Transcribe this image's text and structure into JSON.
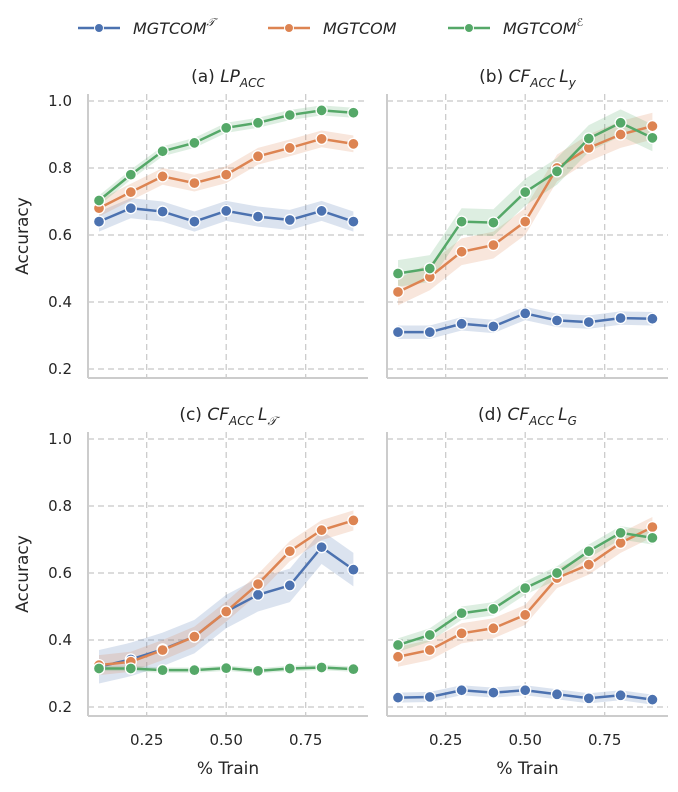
{
  "chart_data": [
    {
      "type": "line",
      "title": {
        "prefix": "(a)",
        "main": "LP",
        "sub": "ACC",
        "extra": "",
        "extra_sub": ""
      },
      "xlabel": "",
      "ylabel": "Accuracy",
      "x": [
        0.1,
        0.2,
        0.3,
        0.4,
        0.5,
        0.6,
        0.7,
        0.8,
        0.9
      ],
      "series": [
        {
          "name": "MGTCOM𝒯",
          "values": [
            0.64,
            0.68,
            0.67,
            0.64,
            0.672,
            0.655,
            0.645,
            0.672,
            0.64
          ],
          "ci": 0.03
        },
        {
          "name": "MGTCOM",
          "values": [
            0.68,
            0.728,
            0.775,
            0.755,
            0.78,
            0.835,
            0.86,
            0.887,
            0.872
          ],
          "ci": 0.025
        },
        {
          "name": "MGTCOMℰ",
          "values": [
            0.703,
            0.78,
            0.85,
            0.875,
            0.92,
            0.935,
            0.958,
            0.972,
            0.965
          ],
          "ci": 0.015
        }
      ]
    },
    {
      "type": "line",
      "title": {
        "prefix": "(b)",
        "main": "CF",
        "sub": "ACC",
        "extra": "L",
        "extra_sub": "y"
      },
      "xlabel": "",
      "ylabel": "",
      "x": [
        0.1,
        0.2,
        0.3,
        0.4,
        0.5,
        0.6,
        0.7,
        0.8,
        0.9
      ],
      "series": [
        {
          "name": "MGTCOM𝒯",
          "values": [
            0.31,
            0.31,
            0.335,
            0.327,
            0.366,
            0.345,
            0.34,
            0.352,
            0.35
          ],
          "ci": 0.02
        },
        {
          "name": "MGTCOM",
          "values": [
            0.43,
            0.475,
            0.55,
            0.57,
            0.64,
            0.8,
            0.86,
            0.9,
            0.925
          ],
          "ci": 0.04
        },
        {
          "name": "MGTCOMℰ",
          "values": [
            0.485,
            0.5,
            0.64,
            0.637,
            0.728,
            0.79,
            0.888,
            0.935,
            0.89
          ],
          "ci": 0.04
        }
      ]
    },
    {
      "type": "line",
      "title": {
        "prefix": "(c)",
        "main": "CF",
        "sub": "ACC",
        "extra": "L",
        "extra_sub": "𝒯"
      },
      "xlabel": "% Train",
      "ylabel": "Accuracy",
      "x": [
        0.1,
        0.2,
        0.3,
        0.4,
        0.5,
        0.6,
        0.7,
        0.8,
        0.9
      ],
      "series": [
        {
          "name": "MGTCOM𝒯",
          "values": [
            0.32,
            0.342,
            0.372,
            0.41,
            0.485,
            0.535,
            0.563,
            0.677,
            0.61
          ],
          "ci": 0.05
        },
        {
          "name": "MGTCOM",
          "values": [
            0.325,
            0.335,
            0.37,
            0.41,
            0.485,
            0.567,
            0.665,
            0.728,
            0.757
          ],
          "ci": 0.03
        },
        {
          "name": "MGTCOMℰ",
          "values": [
            0.315,
            0.315,
            0.31,
            0.31,
            0.316,
            0.308,
            0.315,
            0.318,
            0.313
          ],
          "ci": 0.008
        }
      ]
    },
    {
      "type": "line",
      "title": {
        "prefix": "(d)",
        "main": "CF",
        "sub": "ACC",
        "extra": "L",
        "extra_sub": "G"
      },
      "xlabel": "% Train",
      "ylabel": "",
      "x": [
        0.1,
        0.2,
        0.3,
        0.4,
        0.5,
        0.6,
        0.7,
        0.8,
        0.9
      ],
      "series": [
        {
          "name": "MGTCOM𝒯",
          "values": [
            0.228,
            0.23,
            0.25,
            0.243,
            0.25,
            0.238,
            0.226,
            0.235,
            0.222
          ],
          "ci": 0.015
        },
        {
          "name": "MGTCOM",
          "values": [
            0.35,
            0.37,
            0.42,
            0.435,
            0.475,
            0.585,
            0.625,
            0.69,
            0.737
          ],
          "ci": 0.03
        },
        {
          "name": "MGTCOMℰ",
          "values": [
            0.385,
            0.415,
            0.48,
            0.493,
            0.555,
            0.6,
            0.665,
            0.72,
            0.705
          ],
          "ci": 0.02
        }
      ]
    }
  ],
  "axes": {
    "ylim": [
      0.18,
      1.02
    ],
    "xlim": [
      0.075,
      0.925
    ],
    "yticks": [
      0.2,
      0.4,
      0.6,
      0.8,
      1.0
    ],
    "ytick_labels": [
      "0.2",
      "0.4",
      "0.6",
      "0.8",
      "1.0"
    ],
    "xticks": [
      0.25,
      0.5,
      0.75
    ],
    "xtick_labels": [
      "0.25",
      "0.50",
      "0.75"
    ],
    "grid": true,
    "grid_style": "dashed"
  },
  "legend": {
    "placement": "top-center",
    "items": [
      {
        "base": "MGTCOM",
        "sup": "𝒯"
      },
      {
        "base": "MGTCOM",
        "sup": ""
      },
      {
        "base": "MGTCOM",
        "sup": "ℰ"
      }
    ]
  },
  "colors": [
    "#4c72b0",
    "#dd8452",
    "#55a868"
  ]
}
